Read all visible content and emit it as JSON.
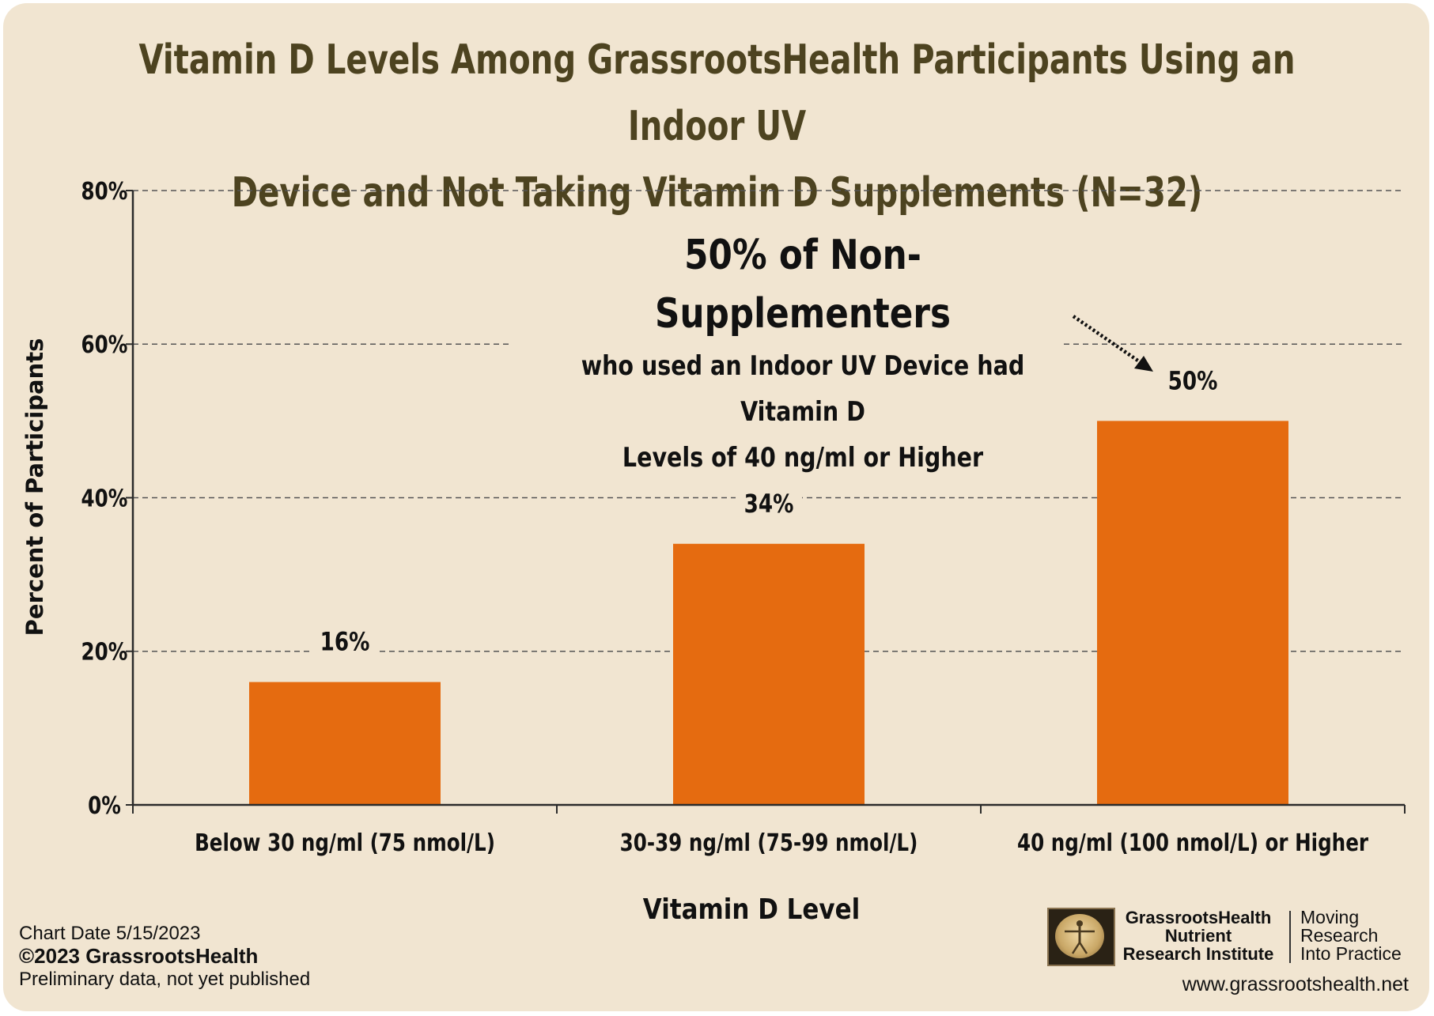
{
  "chart_data": {
    "type": "bar",
    "title_lines": [
      "Vitamin D Levels Among GrassrootsHealth Participants Using an Indoor UV",
      "Device and Not Taking Vitamin D Supplements (N=32)"
    ],
    "categories": [
      "Below 30 ng/ml (75 nmol/L)",
      "30-39 ng/ml (75-99 nmol/L)",
      "40 ng/ml (100 nmol/L) or Higher"
    ],
    "values": [
      16,
      34,
      50
    ],
    "data_labels": [
      "16%",
      "34%",
      "50%"
    ],
    "bar_color": "#e56b10",
    "xlabel": "Vitamin D Level",
    "ylabel": "Percent of Participants",
    "ylim": [
      0,
      80
    ],
    "y_ticks": [
      "0%",
      "20%",
      "40%",
      "60%",
      "80%"
    ],
    "grid": "dashed horizontal",
    "annotation": {
      "headline": "50% of Non-Supplementers",
      "line1": "who used an Indoor UV Device had Vitamin D",
      "line2": "Levels of 40 ng/ml or Higher"
    }
  },
  "footer": {
    "chart_date": "Chart Date  5/15/2023",
    "copyright": "©2023 GrassrootsHealth",
    "note": "Preliminary data, not yet published",
    "brand_lines": [
      "GrassrootsHealth",
      "Nutrient",
      "Research Institute"
    ],
    "tagline_lines": [
      "Moving",
      "Research",
      "Into Practice"
    ],
    "url": "www.grassrootshealth.net",
    "logo_icon": "vitruvian-man-icon"
  },
  "colors": {
    "background": "#f1e5d1",
    "title": "#4d4320",
    "bar": "#e56b10"
  }
}
